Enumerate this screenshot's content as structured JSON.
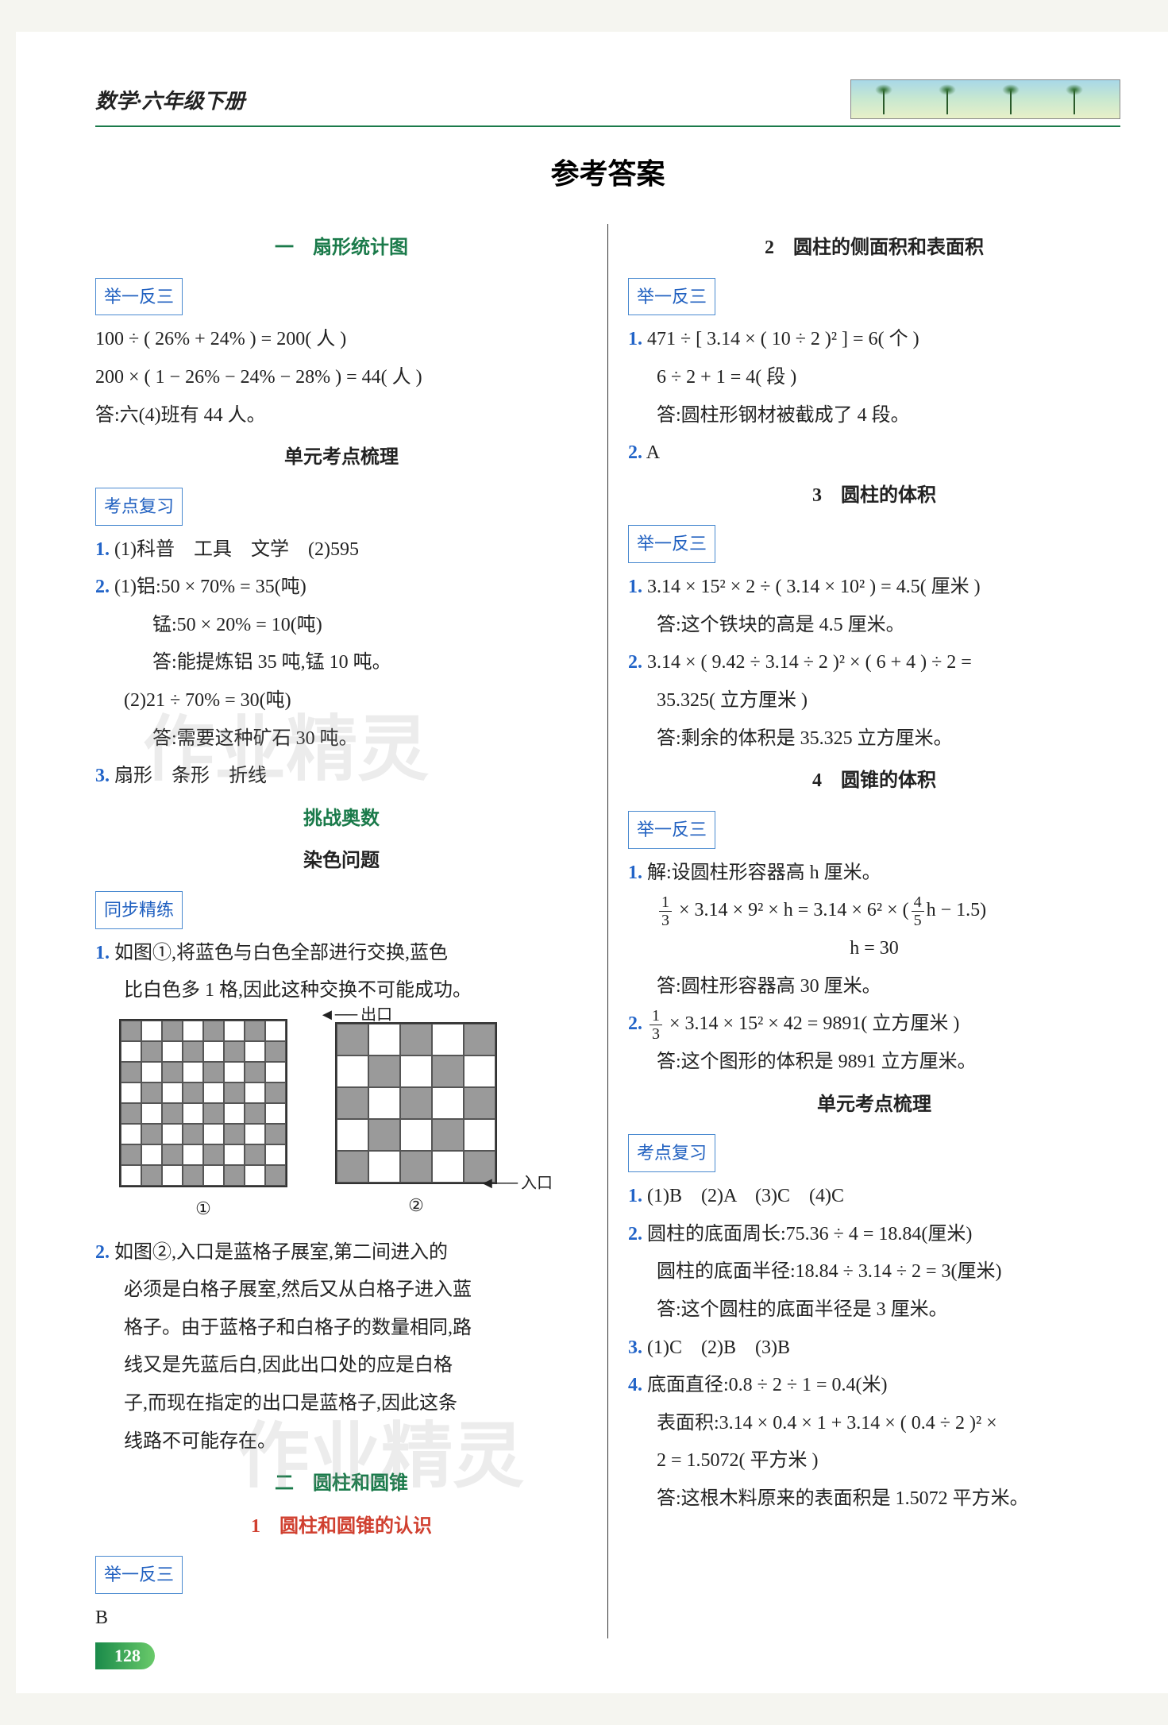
{
  "header": {
    "subject": "数学·六年级下册"
  },
  "title": "参考答案",
  "left": {
    "sec1_title": "一　扇形统计图",
    "tag_jyfs": "举一反三",
    "l1": "100 ÷ ( 26% + 24% ) = 200( 人 )",
    "l2": "200 × ( 1 − 26% − 24% − 28% ) = 44( 人 )",
    "l3": "答:六(4)班有 44 人。",
    "unit_title": "单元考点梳理",
    "tag_kdfx": "考点复习",
    "k1": "(1)科普　工具　文学　(2)595",
    "k2a": "(1)铝:50 × 70% = 35(吨)",
    "k2b": "锰:50 × 20% = 10(吨)",
    "k2c": "答:能提炼铝 35 吨,锰 10 吨。",
    "k2d": "(2)21 ÷ 70% = 30(吨)",
    "k2e": "答:需要这种矿石 30 吨。",
    "k3": "扇形　条形　折线",
    "tzas": "挑战奥数",
    "rswt": "染色问题",
    "tag_tbjl": "同步精练",
    "t1a": "如图①,将蓝色与白色全部进行交换,蓝色",
    "t1b": "比白色多 1 格,因此这种交换不可能成功。",
    "exit": "出口",
    "entry": "入口",
    "b1": "①",
    "b2": "②",
    "t2a": "如图②,入口是蓝格子展室,第二间进入的",
    "t2b": "必须是白格子展室,然后又从白格子进入蓝",
    "t2c": "格子。由于蓝格子和白格子的数量相同,路",
    "t2d": "线又是先蓝后白,因此出口处的应是白格",
    "t2e": "子,而现在指定的出口是蓝格子,因此这条",
    "t2f": "线路不可能存在。",
    "sec2_title": "二　圆柱和圆锥",
    "sec2_sub": "1　圆柱和圆锥的认识",
    "ansB": "B"
  },
  "right": {
    "s2": "2　圆柱的侧面积和表面积",
    "r1a": "471 ÷ [ 3.14 × ( 10 ÷ 2 )² ] = 6( 个 )",
    "r1b": "6 ÷ 2 + 1 = 4( 段 )",
    "r1c": "答:圆柱形钢材被截成了 4 段。",
    "r2": "A",
    "s3": "3　圆柱的体积",
    "r3a": "3.14 × 15² × 2 ÷ ( 3.14 × 10² ) = 4.5( 厘米 )",
    "r3b": "答:这个铁块的高是 4.5 厘米。",
    "r3c": "3.14 × ( 9.42 ÷ 3.14 ÷ 2 )² × ( 6 + 4 ) ÷ 2 =",
    "r3d": "35.325( 立方厘米 )",
    "r3e": "答:剩余的体积是 35.325 立方厘米。",
    "s4": "4　圆锥的体积",
    "r4a": "解:设圆柱形容器高 h 厘米。",
    "r4b_pre": " × 3.14 × 9² × h = 3.14 × 6² × ",
    "r4b_mid": "h − 1.5",
    "r4c": "h = 30",
    "r4d": "答:圆柱形容器高 30 厘米。",
    "r4e": " × 3.14 × 15² × 42 = 9891( 立方厘米 )",
    "r4f": "答:这个图形的体积是 9891 立方厘米。",
    "unit2": "单元考点梳理",
    "kd1": "(1)B　(2)A　(3)C　(4)C",
    "kd2a": "圆柱的底面周长:75.36 ÷ 4 = 18.84(厘米)",
    "kd2b": "圆柱的底面半径:18.84 ÷ 3.14 ÷ 2 = 3(厘米)",
    "kd2c": "答:这个圆柱的底面半径是 3 厘米。",
    "kd3": "(1)C　(2)B　(3)B",
    "kd4a": "底面直径:0.8 ÷ 2 ÷ 1 = 0.4(米)",
    "kd4b": "表面积:3.14 × 0.4 × 1 + 3.14 × ( 0.4 ÷ 2 )² ×",
    "kd4c": "2 = 1.5072( 平方米 )",
    "kd4d": "答:这根木料原来的表面积是 1.5072 平方米。"
  },
  "watermark": "作业精灵",
  "page_number": "128",
  "boards": {
    "board1_size": 8,
    "board2_size": 5,
    "cell_gray": "#9a9a9a",
    "cell_white": "#ffffff"
  }
}
